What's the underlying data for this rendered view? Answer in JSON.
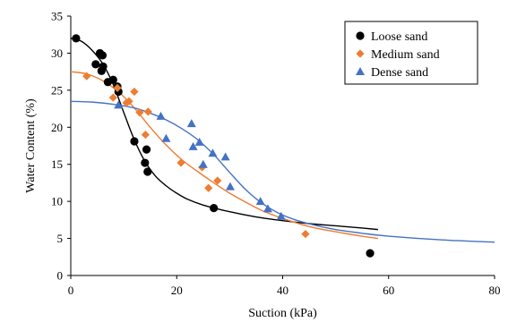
{
  "chart_data": {
    "type": "scatter",
    "xlabel": "Suction (kPa)",
    "ylabel": "Water Content (%)",
    "xlim": [
      0,
      80
    ],
    "ylim": [
      0,
      35
    ],
    "xticks": [
      0,
      20,
      40,
      60,
      80
    ],
    "yticks": [
      0,
      5,
      10,
      15,
      20,
      25,
      30,
      35
    ],
    "grid": false,
    "legend_position": "top-right",
    "series": [
      {
        "name": "Loose sand",
        "marker": "circle",
        "color": "#000000",
        "points": [
          [
            1,
            32
          ],
          [
            4.7,
            28.5
          ],
          [
            5.5,
            30
          ],
          [
            5.8,
            27.6
          ],
          [
            6,
            29.7
          ],
          [
            6.1,
            28.2
          ],
          [
            7,
            26.1
          ],
          [
            8,
            26.4
          ],
          [
            8.8,
            25.5
          ],
          [
            9,
            24.8
          ],
          [
            12,
            18.1
          ],
          [
            14,
            15.2
          ],
          [
            14.3,
            17
          ],
          [
            14.5,
            14
          ],
          [
            27,
            9.1
          ],
          [
            56.5,
            3
          ]
        ],
        "fit_curve": [
          [
            0,
            32
          ],
          [
            2,
            31.6
          ],
          [
            4,
            30.4
          ],
          [
            6,
            28.6
          ],
          [
            8,
            25.8
          ],
          [
            10,
            22
          ],
          [
            12,
            18.3
          ],
          [
            14,
            15.4
          ],
          [
            16,
            13.4
          ],
          [
            18,
            12.1
          ],
          [
            20,
            11.1
          ],
          [
            22,
            10.3
          ],
          [
            25,
            9.5
          ],
          [
            30,
            8.6
          ],
          [
            35,
            7.9
          ],
          [
            40,
            7.4
          ],
          [
            45,
            7
          ],
          [
            50,
            6.7
          ],
          [
            55,
            6.4
          ],
          [
            58,
            6.2
          ]
        ]
      },
      {
        "name": "Medium sand",
        "marker": "diamond",
        "color": "#ED7D31",
        "points": [
          [
            3,
            26.9
          ],
          [
            8,
            24
          ],
          [
            8.8,
            25.3
          ],
          [
            10.5,
            23.3
          ],
          [
            11,
            23.5
          ],
          [
            12,
            24.8
          ],
          [
            13,
            22
          ],
          [
            14.1,
            19
          ],
          [
            14.6,
            22.1
          ],
          [
            20.8,
            15.2
          ],
          [
            24.8,
            14.6
          ],
          [
            26,
            11.8
          ],
          [
            27.7,
            12.8
          ],
          [
            44.3,
            5.6
          ]
        ],
        "fit_curve": [
          [
            0,
            27.5
          ],
          [
            3,
            27.2
          ],
          [
            6,
            26.3
          ],
          [
            9,
            24.8
          ],
          [
            12,
            22.6
          ],
          [
            15,
            20
          ],
          [
            18,
            17.6
          ],
          [
            21,
            15.6
          ],
          [
            24,
            14
          ],
          [
            27,
            12.5
          ],
          [
            30,
            11.1
          ],
          [
            33,
            9.9
          ],
          [
            36,
            8.8
          ],
          [
            40,
            7.7
          ],
          [
            45,
            6.6
          ],
          [
            50,
            5.9
          ],
          [
            55,
            5.3
          ],
          [
            58,
            5
          ]
        ]
      },
      {
        "name": "Dense sand",
        "marker": "triangle",
        "color": "#4472C4",
        "points": [
          [
            9,
            23
          ],
          [
            17,
            21.5
          ],
          [
            18,
            18.5
          ],
          [
            22.8,
            20.5
          ],
          [
            23.1,
            17.4
          ],
          [
            24.3,
            18
          ],
          [
            25,
            15
          ],
          [
            26.8,
            16.5
          ],
          [
            29.2,
            16
          ],
          [
            30.1,
            12
          ],
          [
            35.8,
            10
          ],
          [
            37.2,
            9
          ],
          [
            39.7,
            8
          ]
        ],
        "fit_curve": [
          [
            0,
            23.5
          ],
          [
            4,
            23.4
          ],
          [
            8,
            23.1
          ],
          [
            12,
            22.6
          ],
          [
            15,
            21.9
          ],
          [
            18,
            21
          ],
          [
            21,
            19.8
          ],
          [
            24,
            18.3
          ],
          [
            27,
            16.3
          ],
          [
            30,
            13.9
          ],
          [
            33,
            11.6
          ],
          [
            36,
            9.8
          ],
          [
            39,
            8.5
          ],
          [
            42,
            7.6
          ],
          [
            46,
            6.8
          ],
          [
            50,
            6.2
          ],
          [
            55,
            5.7
          ],
          [
            60,
            5.3
          ],
          [
            70,
            4.8
          ],
          [
            80,
            4.5
          ]
        ]
      }
    ]
  }
}
